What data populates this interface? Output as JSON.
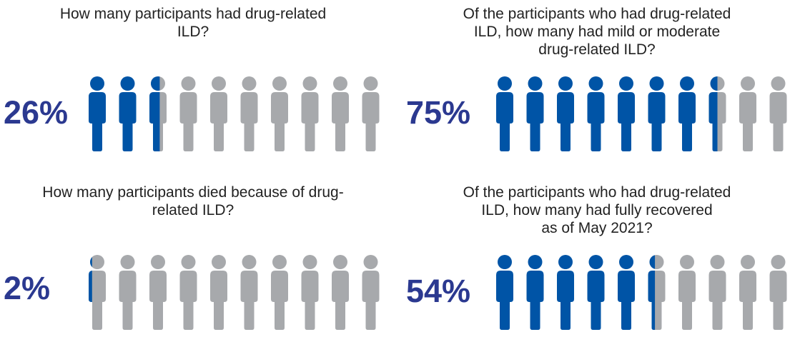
{
  "colors": {
    "filled": "#0054a6",
    "empty": "#a7a9ac",
    "percent_text": "#2b3990"
  },
  "icon": "person-icon",
  "icons_per_row": 10,
  "chart_data": [
    {
      "type": "pictograph",
      "question_lines": [
        "How many participants had drug-related",
        "ILD?"
      ],
      "percent_label": "26%",
      "value": 26
    },
    {
      "type": "pictograph",
      "question_lines": [
        "Of the participants who had drug-related",
        "ILD, how many had mild or moderate",
        "drug-related ILD?"
      ],
      "percent_label": "75%",
      "value": 75
    },
    {
      "type": "pictograph",
      "question_lines": [
        "How many participants died because of drug-",
        "related ILD?"
      ],
      "percent_label": "2%",
      "value": 2
    },
    {
      "type": "pictograph",
      "question_lines": [
        "Of the participants who had drug-related",
        "ILD, how many had fully recovered",
        "as of May 2021?"
      ],
      "percent_label": "54%",
      "value": 54
    }
  ]
}
